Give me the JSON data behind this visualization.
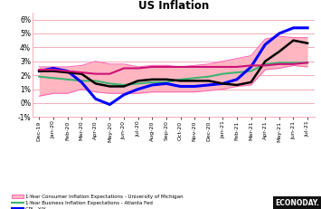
{
  "title": "US Inflation",
  "x_labels": [
    "Dec-19",
    "Jan-20",
    "Feb-20",
    "Mar-20",
    "Apr-20",
    "May-20",
    "Jun-20",
    "Jul-20",
    "Aug-20",
    "Sep-20",
    "Oct-20",
    "Nov-20",
    "Dec-20",
    "Jan-21",
    "Feb-21",
    "Mar-21",
    "Apr-21",
    "May-21",
    "Jun-21",
    "Jul-21"
  ],
  "ylim": [
    -0.01,
    0.065
  ],
  "yticks": [
    -0.01,
    0.0,
    0.01,
    0.02,
    0.03,
    0.04,
    0.05,
    0.06
  ],
  "ytick_labels": [
    "-1%",
    "0%",
    "1%",
    "2%",
    "3%",
    "4%",
    "5%",
    "6%"
  ],
  "umich_upper": [
    0.026,
    0.026,
    0.026,
    0.027,
    0.03,
    0.028,
    0.028,
    0.026,
    0.027,
    0.027,
    0.026,
    0.027,
    0.028,
    0.03,
    0.032,
    0.034,
    0.046,
    0.048,
    0.047,
    0.047
  ],
  "umich_lower": [
    0.005,
    0.007,
    0.007,
    0.01,
    0.008,
    0.007,
    0.007,
    0.007,
    0.008,
    0.008,
    0.008,
    0.008,
    0.009,
    0.01,
    0.012,
    0.013,
    0.024,
    0.025,
    0.027,
    0.026
  ],
  "atlanta_fed": [
    0.019,
    0.018,
    0.017,
    0.016,
    0.016,
    0.014,
    0.013,
    0.014,
    0.015,
    0.015,
    0.017,
    0.018,
    0.019,
    0.021,
    0.022,
    0.023,
    0.028,
    0.029,
    0.029,
    0.029
  ],
  "cpi_yy": [
    0.023,
    0.025,
    0.023,
    0.015,
    0.003,
    -0.001,
    0.006,
    0.01,
    0.013,
    0.014,
    0.012,
    0.012,
    0.013,
    0.014,
    0.017,
    0.026,
    0.042,
    0.05,
    0.054,
    0.054
  ],
  "cpi_core": [
    0.023,
    0.023,
    0.022,
    0.021,
    0.014,
    0.012,
    0.012,
    0.016,
    0.017,
    0.017,
    0.016,
    0.016,
    0.016,
    0.014,
    0.013,
    0.015,
    0.03,
    0.037,
    0.045,
    0.043
  ],
  "five_year": [
    0.024,
    0.024,
    0.023,
    0.022,
    0.021,
    0.021,
    0.025,
    0.025,
    0.026,
    0.026,
    0.026,
    0.026,
    0.026,
    0.026,
    0.026,
    0.027,
    0.027,
    0.028,
    0.028,
    0.029
  ],
  "color_umich": "#FF69B4",
  "color_atlanta": "#3CB371",
  "color_cpi": "#0000FF",
  "color_core": "#000000",
  "color_5year": "#CC1177",
  "color_umich_fill": "#FFB6C1",
  "background_color": "#FFFFFF",
  "grid_color": "#F0A0B0",
  "econoday_bg": "#111111",
  "econoday_text": "#FFFFFF"
}
